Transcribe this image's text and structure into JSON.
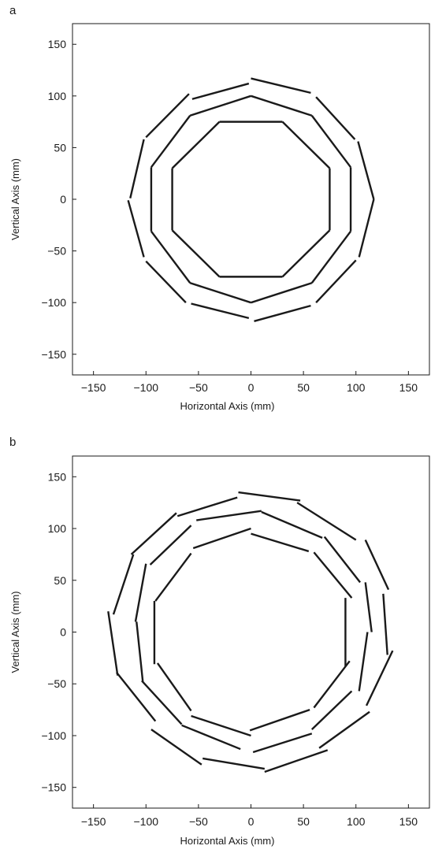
{
  "chart_data": [
    {
      "type": "line",
      "panel_label": "a",
      "xlabel": "Horizontal Axis (mm)",
      "ylabel": "Vertical Axis (mm)",
      "xlim": [
        -170,
        170
      ],
      "ylim": [
        -170,
        170
      ],
      "xticks": [
        -150,
        -100,
        -50,
        0,
        50,
        100,
        150
      ],
      "yticks": [
        -150,
        -100,
        -50,
        0,
        50,
        100,
        150
      ],
      "tick_labels_x": [
        "−150",
        "−100",
        "−50",
        "0",
        "50",
        "100",
        "150"
      ],
      "tick_labels_y": [
        "−150",
        "−100",
        "−50",
        "0",
        "50",
        "100",
        "150"
      ],
      "grid": false,
      "legend": "none",
      "line_color": "#1a1a1a",
      "segments": [
        [
          [
            -30,
            75
          ],
          [
            30,
            75
          ]
        ],
        [
          [
            30,
            75
          ],
          [
            75,
            30
          ]
        ],
        [
          [
            75,
            30
          ],
          [
            75,
            -30
          ]
        ],
        [
          [
            75,
            -30
          ],
          [
            30,
            -75
          ]
        ],
        [
          [
            30,
            -75
          ],
          [
            -30,
            -75
          ]
        ],
        [
          [
            -30,
            -75
          ],
          [
            -75,
            -30
          ]
        ],
        [
          [
            -75,
            -30
          ],
          [
            -75,
            30
          ]
        ],
        [
          [
            -75,
            30
          ],
          [
            -30,
            75
          ]
        ],
        [
          [
            0,
            100
          ],
          [
            -58,
            81
          ]
        ],
        [
          [
            -58,
            81
          ],
          [
            -95,
            31
          ]
        ],
        [
          [
            -95,
            31
          ],
          [
            -95,
            -31
          ]
        ],
        [
          [
            -95,
            -31
          ],
          [
            -58,
            -81
          ]
        ],
        [
          [
            -58,
            -81
          ],
          [
            0,
            -100
          ]
        ],
        [
          [
            0,
            -100
          ],
          [
            58,
            -81
          ]
        ],
        [
          [
            58,
            -81
          ],
          [
            95,
            -31
          ]
        ],
        [
          [
            95,
            -31
          ],
          [
            95,
            31
          ]
        ],
        [
          [
            95,
            31
          ],
          [
            58,
            81
          ]
        ],
        [
          [
            58,
            81
          ],
          [
            0,
            100
          ]
        ],
        [
          [
            0,
            117
          ],
          [
            57,
            103
          ]
        ],
        [
          [
            62,
            99
          ],
          [
            99,
            58
          ]
        ],
        [
          [
            102,
            56
          ],
          [
            117,
            0
          ]
        ],
        [
          [
            117,
            0
          ],
          [
            103,
            -56
          ]
        ],
        [
          [
            100,
            -59
          ],
          [
            62,
            -100
          ]
        ],
        [
          [
            57,
            -103
          ],
          [
            3,
            -118
          ]
        ],
        [
          [
            -2,
            -115
          ],
          [
            -57,
            -101
          ]
        ],
        [
          [
            -62,
            -100
          ],
          [
            -100,
            -60
          ]
        ],
        [
          [
            -102,
            -56
          ],
          [
            -117,
            -1
          ]
        ],
        [
          [
            -115,
            1
          ],
          [
            -102,
            58
          ]
        ],
        [
          [
            -100,
            60
          ],
          [
            -59,
            102
          ]
        ],
        [
          [
            -56,
            97
          ],
          [
            -2,
            112
          ]
        ]
      ]
    },
    {
      "type": "line",
      "panel_label": "b",
      "xlabel": "Horizontal Axis (mm)",
      "ylabel": "Vertical Axis (mm)",
      "xlim": [
        -170,
        170
      ],
      "ylim": [
        -170,
        170
      ],
      "xticks": [
        -150,
        -100,
        -50,
        0,
        50,
        100,
        150
      ],
      "yticks": [
        -150,
        -100,
        -50,
        0,
        50,
        100,
        150
      ],
      "tick_labels_x": [
        "−150",
        "−100",
        "−50",
        "0",
        "50",
        "100",
        "150"
      ],
      "tick_labels_y": [
        "−150",
        "−100",
        "−50",
        "0",
        "50",
        "100",
        "150"
      ],
      "grid": false,
      "legend": "none",
      "line_color": "#1a1a1a",
      "segments": [
        [
          [
            0,
            100
          ],
          [
            -55,
            81
          ]
        ],
        [
          [
            -57,
            76
          ],
          [
            -91,
            30
          ]
        ],
        [
          [
            -92,
            30
          ],
          [
            -92,
            -31
          ]
        ],
        [
          [
            -89,
            -30
          ],
          [
            -57,
            -76
          ]
        ],
        [
          [
            -57,
            -81
          ],
          [
            0,
            -100
          ]
        ],
        [
          [
            -1,
            -95
          ],
          [
            56,
            -75
          ]
        ],
        [
          [
            60,
            -73
          ],
          [
            94,
            -28
          ]
        ],
        [
          [
            90,
            -33
          ],
          [
            90,
            33
          ]
        ],
        [
          [
            96,
            33
          ],
          [
            60,
            77
          ]
        ],
        [
          [
            55,
            78
          ],
          [
            0,
            95
          ]
        ],
        [
          [
            10,
            116
          ],
          [
            68,
            91
          ]
        ],
        [
          [
            70,
            92
          ],
          [
            104,
            48
          ]
        ],
        [
          [
            109,
            48
          ],
          [
            115,
            0
          ]
        ],
        [
          [
            111,
            0
          ],
          [
            103,
            -57
          ]
        ],
        [
          [
            96,
            -57
          ],
          [
            58,
            -94
          ]
        ],
        [
          [
            58,
            -98
          ],
          [
            2,
            -116
          ]
        ],
        [
          [
            -10,
            -113
          ],
          [
            -66,
            -90
          ]
        ],
        [
          [
            -66,
            -89
          ],
          [
            -104,
            -47
          ]
        ],
        [
          [
            -103,
            -48
          ],
          [
            -109,
            10
          ]
        ],
        [
          [
            -110,
            10
          ],
          [
            -100,
            66
          ]
        ],
        [
          [
            -96,
            65
          ],
          [
            -57,
            103
          ]
        ],
        [
          [
            -52,
            108
          ],
          [
            10,
            117
          ]
        ],
        [
          [
            -12,
            135
          ],
          [
            47,
            127
          ]
        ],
        [
          [
            44,
            125
          ],
          [
            100,
            89
          ]
        ],
        [
          [
            109,
            89
          ],
          [
            131,
            41
          ]
        ],
        [
          [
            126,
            37
          ],
          [
            130,
            -22
          ]
        ],
        [
          [
            135,
            -18
          ],
          [
            110,
            -71
          ]
        ],
        [
          [
            113,
            -77
          ],
          [
            65,
            -112
          ]
        ],
        [
          [
            73,
            -114
          ],
          [
            13,
            -135
          ]
        ],
        [
          [
            13,
            -132
          ],
          [
            -46,
            -122
          ]
        ],
        [
          [
            -47,
            -128
          ],
          [
            -95,
            -94
          ]
        ],
        [
          [
            -91,
            -86
          ],
          [
            -128,
            -39
          ]
        ],
        [
          [
            -127,
            -42
          ],
          [
            -136,
            20
          ]
        ],
        [
          [
            -131,
            17
          ],
          [
            -112,
            75
          ]
        ],
        [
          [
            -114,
            75
          ],
          [
            -71,
            115
          ]
        ],
        [
          [
            -70,
            112
          ],
          [
            -13,
            130
          ]
        ]
      ]
    }
  ]
}
